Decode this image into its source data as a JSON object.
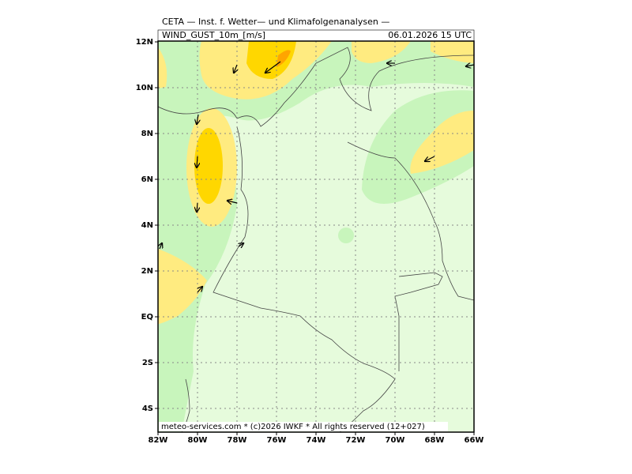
{
  "header": {
    "title": "CETA — Inst. f. Wetter— und Klimafolgenanalysen —",
    "variable": "WIND_GUST_10m_[m/s]",
    "valid_time": "06.01.2026 15 UTC"
  },
  "map": {
    "lon_labels": [
      "82W",
      "80W",
      "78W",
      "76W",
      "74W",
      "72W",
      "70W",
      "68W",
      "66W"
    ],
    "lat_labels": [
      "12N",
      "10N",
      "8N",
      "6N",
      "4N",
      "2N",
      "EQ",
      "2S",
      "4S"
    ]
  },
  "footer": "meteo-services.com * (c)2026 IWKF * All rights reserved (12+027)"
}
